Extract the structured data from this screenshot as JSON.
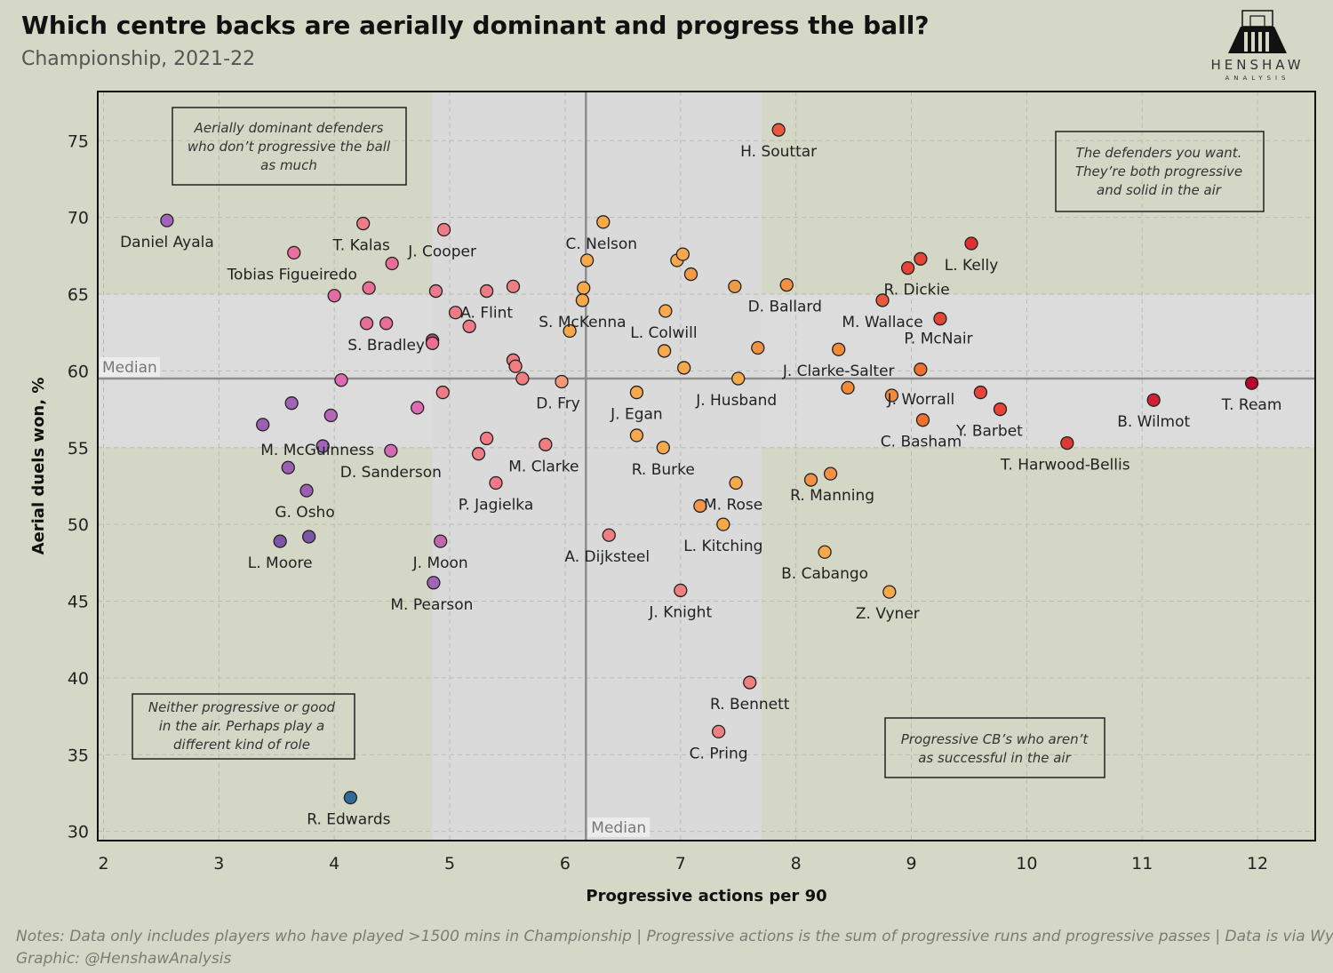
{
  "header": {
    "title": "Which centre backs are aerially dominant and progress the ball?",
    "subtitle": "Championship, 2021-22"
  },
  "logo": {
    "name": "HENSHAW",
    "sub": "ANALYSIS"
  },
  "notes": {
    "line1": "Notes: Data only includes players who have played >1500 mins in Championship | Progressive actions is the sum of progressive runs and progressive passes | Data is via Wyscout",
    "line2": "Graphic: @HenshawAnalysis"
  },
  "chart_data": {
    "type": "scatter",
    "xlabel": "Progressive actions per 90",
    "ylabel": "Aerial duels won, %",
    "xlim": [
      1.95,
      12.5
    ],
    "ylim": [
      29.4,
      78.2
    ],
    "x_ticks": [
      2,
      3,
      4,
      5,
      6,
      7,
      8,
      9,
      10,
      11,
      12
    ],
    "y_ticks": [
      30,
      35,
      40,
      45,
      50,
      55,
      60,
      65,
      70,
      75
    ],
    "grid": true,
    "median_x": 6.18,
    "median_y": 59.5,
    "median_label": "Median",
    "x_shade_band": [
      4.85,
      7.7
    ],
    "y_shade_band": [
      55,
      65
    ],
    "color_scale": [
      "#2e6a9c",
      "#6b4f9a",
      "#a164b8",
      "#cf6f97",
      "#f08c8c",
      "#f7a84a",
      "#f38a37",
      "#ea5a3a",
      "#de2f33",
      "#b8002e"
    ],
    "points": [
      {
        "x": 2.55,
        "y": 69.8,
        "label": "Daniel Ayala",
        "color": "#a164b8"
      },
      {
        "x": 4.25,
        "y": 69.6,
        "label": "T. Kalas",
        "color": "#f07a86"
      },
      {
        "x": 3.65,
        "y": 67.7,
        "label": "Tobias Figueiredo",
        "color": "#ea6e9e"
      },
      {
        "x": 4.95,
        "y": 69.2,
        "label": "J. Cooper",
        "color": "#f07a86"
      },
      {
        "x": 4.5,
        "y": 67.0,
        "label": "",
        "color": "#e86e98"
      },
      {
        "x": 4.3,
        "y": 65.4,
        "label": "",
        "color": "#e86e98"
      },
      {
        "x": 4.0,
        "y": 64.9,
        "label": "",
        "color": "#e36ba3"
      },
      {
        "x": 4.88,
        "y": 65.2,
        "label": "",
        "color": "#ee7a8e"
      },
      {
        "x": 4.28,
        "y": 63.1,
        "label": "",
        "color": "#e86e98"
      },
      {
        "x": 4.45,
        "y": 63.1,
        "label": "S. Bradley",
        "color": "#e86e98"
      },
      {
        "x": 4.85,
        "y": 62.0,
        "label": "",
        "color": "#c0456e"
      },
      {
        "x": 4.85,
        "y": 61.8,
        "label": "",
        "color": "#ec7191"
      },
      {
        "x": 5.05,
        "y": 63.8,
        "label": "",
        "color": "#f07a86"
      },
      {
        "x": 5.17,
        "y": 62.9,
        "label": "",
        "color": "#f07a86"
      },
      {
        "x": 5.32,
        "y": 65.2,
        "label": "A. Flint",
        "color": "#f07a86"
      },
      {
        "x": 5.55,
        "y": 65.5,
        "label": "",
        "color": "#f07d82"
      },
      {
        "x": 5.55,
        "y": 60.7,
        "label": "",
        "color": "#f07d82"
      },
      {
        "x": 5.57,
        "y": 60.3,
        "label": "",
        "color": "#f07d82"
      },
      {
        "x": 5.63,
        "y": 59.5,
        "label": "",
        "color": "#f07d82"
      },
      {
        "x": 5.97,
        "y": 59.3,
        "label": "D. Fry",
        "color": "#f5957a"
      },
      {
        "x": 4.06,
        "y": 59.4,
        "label": "",
        "color": "#de6ab3"
      },
      {
        "x": 4.94,
        "y": 58.6,
        "label": "",
        "color": "#f07a86"
      },
      {
        "x": 4.72,
        "y": 57.6,
        "label": "",
        "color": "#de6ab3"
      },
      {
        "x": 3.63,
        "y": 57.9,
        "label": "",
        "color": "#a164b8"
      },
      {
        "x": 3.97,
        "y": 57.1,
        "label": "",
        "color": "#b467b6"
      },
      {
        "x": 3.38,
        "y": 56.5,
        "label": "",
        "color": "#9b5fb4"
      },
      {
        "x": 3.9,
        "y": 55.1,
        "label": "M. McGuinness",
        "color": "#a164b8"
      },
      {
        "x": 4.49,
        "y": 54.8,
        "label": "D. Sanderson",
        "color": "#d46ab4"
      },
      {
        "x": 3.6,
        "y": 53.7,
        "label": "",
        "color": "#9b5fb4"
      },
      {
        "x": 3.76,
        "y": 52.2,
        "label": "G. Osho",
        "color": "#9b5fb4"
      },
      {
        "x": 5.32,
        "y": 55.6,
        "label": "",
        "color": "#f07a86"
      },
      {
        "x": 5.25,
        "y": 54.6,
        "label": "",
        "color": "#f07a86"
      },
      {
        "x": 5.83,
        "y": 55.2,
        "label": "M. Clarke",
        "color": "#f07d82"
      },
      {
        "x": 5.4,
        "y": 52.7,
        "label": "P. Jagielka",
        "color": "#f07a86"
      },
      {
        "x": 3.53,
        "y": 48.9,
        "label": "L. Moore",
        "color": "#7e54a8"
      },
      {
        "x": 3.78,
        "y": 49.2,
        "label": "",
        "color": "#7e54a8"
      },
      {
        "x": 4.92,
        "y": 48.9,
        "label": "J. Moon",
        "color": "#c366b0"
      },
      {
        "x": 4.86,
        "y": 46.2,
        "label": "M. Pearson",
        "color": "#a164b8"
      },
      {
        "x": 6.38,
        "y": 49.3,
        "label": "A. Dijksteel",
        "color": "#f17d84"
      },
      {
        "x": 7.0,
        "y": 45.7,
        "label": "J. Knight",
        "color": "#f08080"
      },
      {
        "x": 7.6,
        "y": 39.7,
        "label": "R. Bennett",
        "color": "#f08080"
      },
      {
        "x": 7.33,
        "y": 36.5,
        "label": "C. Pring",
        "color": "#f08080"
      },
      {
        "x": 4.14,
        "y": 32.2,
        "label": "R. Edwards",
        "color": "#2e6a9c"
      },
      {
        "x": 7.85,
        "y": 75.7,
        "label": "H. Souttar",
        "color": "#ea5a3a"
      },
      {
        "x": 6.33,
        "y": 69.7,
        "label": "C. Nelson",
        "color": "#f7a84a"
      },
      {
        "x": 6.19,
        "y": 67.2,
        "label": "",
        "color": "#f7a84a"
      },
      {
        "x": 6.16,
        "y": 65.4,
        "label": "",
        "color": "#f7a84a"
      },
      {
        "x": 6.15,
        "y": 64.6,
        "label": "S. McKenna",
        "color": "#f7a84a"
      },
      {
        "x": 6.04,
        "y": 62.6,
        "label": "",
        "color": "#f7a84a"
      },
      {
        "x": 6.97,
        "y": 67.2,
        "label": "",
        "color": "#f7a84a"
      },
      {
        "x": 7.02,
        "y": 67.6,
        "label": "",
        "color": "#f7a84a"
      },
      {
        "x": 7.09,
        "y": 66.3,
        "label": "",
        "color": "#f49a45"
      },
      {
        "x": 6.87,
        "y": 63.9,
        "label": "L. Colwill",
        "color": "#f7a84a"
      },
      {
        "x": 6.86,
        "y": 61.3,
        "label": "",
        "color": "#f7a84a"
      },
      {
        "x": 7.03,
        "y": 60.2,
        "label": "",
        "color": "#f7a84a"
      },
      {
        "x": 6.62,
        "y": 58.6,
        "label": "J. Egan",
        "color": "#f7a84a"
      },
      {
        "x": 6.62,
        "y": 55.8,
        "label": "",
        "color": "#f7a84a"
      },
      {
        "x": 6.85,
        "y": 55.0,
        "label": "R. Burke",
        "color": "#f7a84a"
      },
      {
        "x": 7.47,
        "y": 65.5,
        "label": "",
        "color": "#f49a45"
      },
      {
        "x": 7.92,
        "y": 65.6,
        "label": "D. Ballard",
        "color": "#f39043"
      },
      {
        "x": 7.67,
        "y": 61.5,
        "label": "",
        "color": "#f39043"
      },
      {
        "x": 7.5,
        "y": 59.5,
        "label": "J. Husband",
        "color": "#f7a84a"
      },
      {
        "x": 7.48,
        "y": 52.7,
        "label": "M. Rose",
        "color": "#f7a84a"
      },
      {
        "x": 7.17,
        "y": 51.2,
        "label": "",
        "color": "#f5944a"
      },
      {
        "x": 7.37,
        "y": 50.0,
        "label": "L. Kitching",
        "color": "#f7a84a"
      },
      {
        "x": 8.13,
        "y": 52.9,
        "label": "",
        "color": "#f39043"
      },
      {
        "x": 8.3,
        "y": 53.3,
        "label": "R. Manning",
        "color": "#f39043"
      },
      {
        "x": 8.25,
        "y": 48.2,
        "label": "B. Cabango",
        "color": "#f7a84a"
      },
      {
        "x": 8.81,
        "y": 45.6,
        "label": "Z. Vyner",
        "color": "#f7a84a"
      },
      {
        "x": 8.37,
        "y": 61.4,
        "label": "J. Clarke-Salter",
        "color": "#f38a37"
      },
      {
        "x": 8.45,
        "y": 58.9,
        "label": "",
        "color": "#f38a37"
      },
      {
        "x": 8.83,
        "y": 58.4,
        "label": "J. Worrall",
        "color": "#f38a37"
      },
      {
        "x": 9.08,
        "y": 60.1,
        "label": "",
        "color": "#f07030"
      },
      {
        "x": 9.1,
        "y": 56.8,
        "label": "C. Basham",
        "color": "#f07030"
      },
      {
        "x": 8.75,
        "y": 64.6,
        "label": "M. Wallace",
        "color": "#ea5a3a"
      },
      {
        "x": 8.97,
        "y": 66.7,
        "label": "R. Dickie",
        "color": "#e64436"
      },
      {
        "x": 9.08,
        "y": 67.3,
        "label": "",
        "color": "#e64436"
      },
      {
        "x": 9.52,
        "y": 68.3,
        "label": "L. Kelly",
        "color": "#de2f33"
      },
      {
        "x": 9.25,
        "y": 63.4,
        "label": "P. McNair",
        "color": "#e64436"
      },
      {
        "x": 9.6,
        "y": 58.6,
        "label": "",
        "color": "#e64436"
      },
      {
        "x": 9.77,
        "y": 57.5,
        "label": "Y. Barbet",
        "color": "#e64436"
      },
      {
        "x": 10.35,
        "y": 55.3,
        "label": "T. Harwood-Bellis",
        "color": "#de3a33"
      },
      {
        "x": 11.1,
        "y": 58.1,
        "label": "B. Wilmot",
        "color": "#d0232f"
      },
      {
        "x": 11.95,
        "y": 59.2,
        "label": "T. Ream",
        "color": "#b8002e"
      }
    ],
    "annotations": [
      {
        "lines": [
          "Aerially dominant defenders",
          "who don’t progressive the ball",
          "as much"
        ]
      },
      {
        "lines": [
          "The defenders you want.",
          "They’re both progressive",
          "and solid in the air"
        ]
      },
      {
        "lines": [
          "Neither progressive or good",
          "in the air. Perhaps play a",
          "different kind of role"
        ]
      },
      {
        "lines": [
          "Progressive CB’s who aren’t",
          "as successful in the air"
        ]
      }
    ]
  }
}
